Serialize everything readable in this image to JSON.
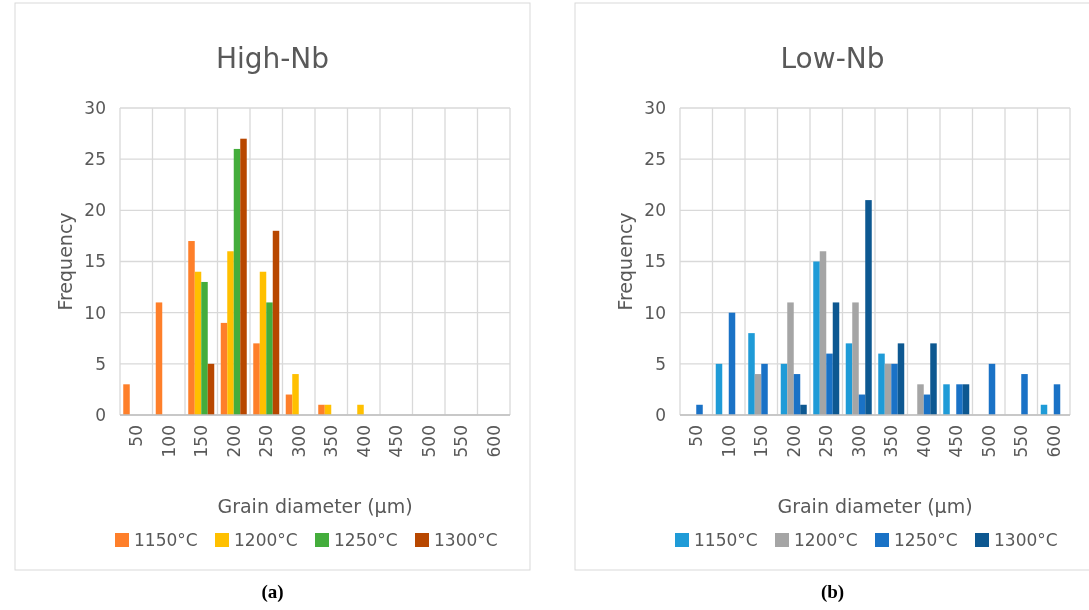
{
  "chart_data": [
    {
      "type": "bar",
      "title": "High-Nb",
      "xlabel": "Grain diameter (µm)",
      "ylabel": "Frequency",
      "categories": [
        "50",
        "100",
        "150",
        "200",
        "250",
        "300",
        "350",
        "400",
        "450",
        "500",
        "550",
        "600"
      ],
      "series": [
        {
          "name": "1150°C",
          "color": "#fe7f2a",
          "values": [
            3,
            11,
            17,
            9,
            7,
            2,
            1,
            0,
            0,
            0,
            0,
            0
          ]
        },
        {
          "name": "1200°C",
          "color": "#ffc000",
          "values": [
            0,
            0,
            14,
            16,
            14,
            4,
            1,
            1,
            0,
            0,
            0,
            0
          ]
        },
        {
          "name": "1250°C",
          "color": "#44ad3c",
          "values": [
            0,
            0,
            13,
            26,
            11,
            0,
            0,
            0,
            0,
            0,
            0,
            0
          ]
        },
        {
          "name": "1300°C",
          "color": "#b84700",
          "values": [
            0,
            0,
            5,
            27,
            18,
            0,
            0,
            0,
            0,
            0,
            0,
            0
          ]
        }
      ],
      "ylim": [
        0,
        30
      ],
      "yticks": [
        0,
        5,
        10,
        15,
        20,
        25,
        30
      ],
      "grid": true,
      "legend": "bottom",
      "annotations": [
        "(a)"
      ]
    },
    {
      "type": "bar",
      "title": "Low-Nb",
      "xlabel": "Grain diameter (µm)",
      "ylabel": "Frequency",
      "categories": [
        "50",
        "100",
        "150",
        "200",
        "250",
        "300",
        "350",
        "400",
        "450",
        "500",
        "550",
        "600"
      ],
      "series": [
        {
          "name": "1150°C",
          "color": "#1f9bd7",
          "values": [
            0,
            5,
            8,
            5,
            15,
            7,
            6,
            0,
            3,
            0,
            0,
            1
          ]
        },
        {
          "name": "1200°C",
          "color": "#a5a5a5",
          "values": [
            0,
            0,
            4,
            11,
            16,
            11,
            5,
            3,
            0,
            0,
            0,
            0
          ]
        },
        {
          "name": "1250°C",
          "color": "#1a72c6",
          "values": [
            1,
            10,
            5,
            4,
            6,
            2,
            5,
            2,
            3,
            5,
            4,
            3
          ]
        },
        {
          "name": "1300°C",
          "color": "#0d5891",
          "values": [
            0,
            0,
            0,
            1,
            11,
            21,
            7,
            7,
            3,
            0,
            0,
            0
          ]
        }
      ],
      "ylim": [
        0,
        30
      ],
      "yticks": [
        0,
        5,
        10,
        15,
        20,
        25,
        30
      ],
      "grid": true,
      "legend": "bottom",
      "annotations": [
        "(b)"
      ]
    }
  ]
}
